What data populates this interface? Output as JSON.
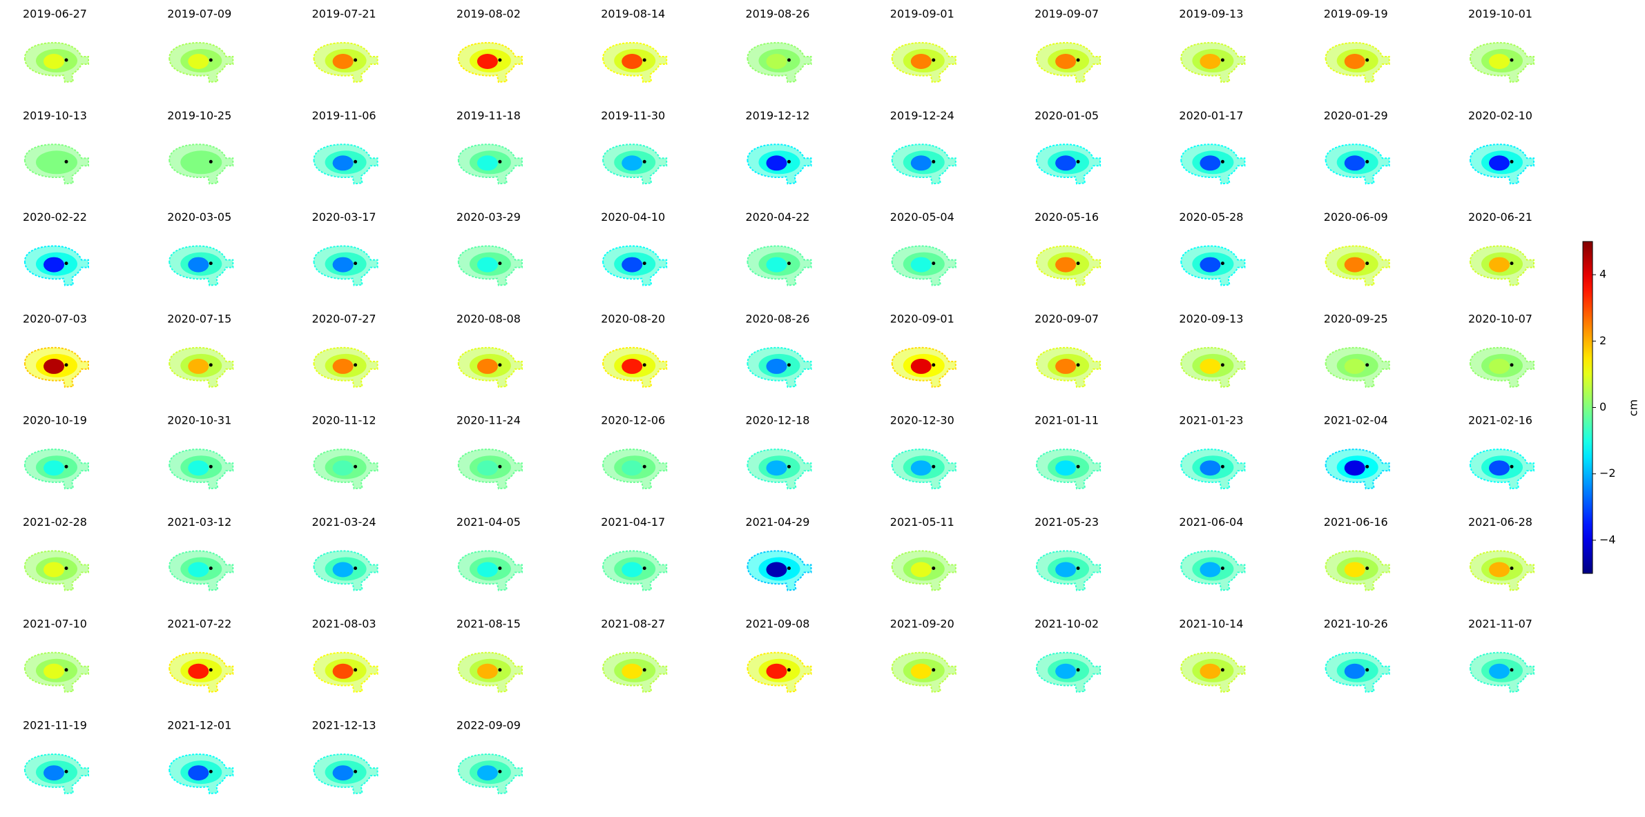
{
  "chart_data": {
    "type": "image_grid",
    "panels": [
      {
        "date": "2019-06-27",
        "value": 1
      },
      {
        "date": "2019-07-09",
        "value": 1
      },
      {
        "date": "2019-07-21",
        "value": 2.5
      },
      {
        "date": "2019-08-02",
        "value": 3.5
      },
      {
        "date": "2019-08-14",
        "value": 3
      },
      {
        "date": "2019-08-26",
        "value": 0.5
      },
      {
        "date": "2019-09-01",
        "value": 2.5
      },
      {
        "date": "2019-09-07",
        "value": 2.5
      },
      {
        "date": "2019-09-13",
        "value": 2
      },
      {
        "date": "2019-09-19",
        "value": 2.5
      },
      {
        "date": "2019-10-01",
        "value": 1
      },
      {
        "date": "2019-10-13",
        "value": 0
      },
      {
        "date": "2019-10-25",
        "value": 0
      },
      {
        "date": "2019-11-06",
        "value": -2.5
      },
      {
        "date": "2019-11-18",
        "value": -1
      },
      {
        "date": "2019-11-30",
        "value": -2
      },
      {
        "date": "2019-12-12",
        "value": -3.5
      },
      {
        "date": "2019-12-24",
        "value": -2.5
      },
      {
        "date": "2020-01-05",
        "value": -3
      },
      {
        "date": "2020-01-17",
        "value": -3
      },
      {
        "date": "2020-01-29",
        "value": -3
      },
      {
        "date": "2020-02-10",
        "value": -3.5
      },
      {
        "date": "2020-02-22",
        "value": -3.5
      },
      {
        "date": "2020-03-05",
        "value": -2.5
      },
      {
        "date": "2020-03-17",
        "value": -2.5
      },
      {
        "date": "2020-03-29",
        "value": -1
      },
      {
        "date": "2020-04-10",
        "value": -3
      },
      {
        "date": "2020-04-22",
        "value": -1
      },
      {
        "date": "2020-05-04",
        "value": -1
      },
      {
        "date": "2020-05-16",
        "value": 2.5
      },
      {
        "date": "2020-05-28",
        "value": -3
      },
      {
        "date": "2020-06-09",
        "value": 2.5
      },
      {
        "date": "2020-06-21",
        "value": 2
      },
      {
        "date": "2020-07-03",
        "value": 4.5
      },
      {
        "date": "2020-07-15",
        "value": 2
      },
      {
        "date": "2020-07-27",
        "value": 2.5
      },
      {
        "date": "2020-08-08",
        "value": 2.5
      },
      {
        "date": "2020-08-20",
        "value": 3.5
      },
      {
        "date": "2020-08-26",
        "value": -2.5
      },
      {
        "date": "2020-09-01",
        "value": 4
      },
      {
        "date": "2020-09-07",
        "value": 2.5
      },
      {
        "date": "2020-09-13",
        "value": 1.5
      },
      {
        "date": "2020-09-25",
        "value": 0.5
      },
      {
        "date": "2020-10-07",
        "value": 0.5
      },
      {
        "date": "2020-10-19",
        "value": -1
      },
      {
        "date": "2020-10-31",
        "value": -1
      },
      {
        "date": "2020-11-12",
        "value": -0.5
      },
      {
        "date": "2020-11-24",
        "value": -0.5
      },
      {
        "date": "2020-12-06",
        "value": -0.5
      },
      {
        "date": "2020-12-18",
        "value": -2
      },
      {
        "date": "2020-12-30",
        "value": -2
      },
      {
        "date": "2021-01-11",
        "value": -1.5
      },
      {
        "date": "2021-01-23",
        "value": -2.5
      },
      {
        "date": "2021-02-04",
        "value": -4
      },
      {
        "date": "2021-02-16",
        "value": -3
      },
      {
        "date": "2021-02-28",
        "value": 1
      },
      {
        "date": "2021-03-12",
        "value": -1
      },
      {
        "date": "2021-03-24",
        "value": -2
      },
      {
        "date": "2021-04-05",
        "value": -1
      },
      {
        "date": "2021-04-17",
        "value": -1
      },
      {
        "date": "2021-04-29",
        "value": -4.5
      },
      {
        "date": "2021-05-11",
        "value": 1
      },
      {
        "date": "2021-05-23",
        "value": -2
      },
      {
        "date": "2021-06-04",
        "value": -2
      },
      {
        "date": "2021-06-16",
        "value": 1.5
      },
      {
        "date": "2021-06-28",
        "value": 2
      },
      {
        "date": "2021-07-10",
        "value": 1
      },
      {
        "date": "2021-07-22",
        "value": 3.5
      },
      {
        "date": "2021-08-03",
        "value": 3
      },
      {
        "date": "2021-08-15",
        "value": 2
      },
      {
        "date": "2021-08-27",
        "value": 1.5
      },
      {
        "date": "2021-09-08",
        "value": 3.5
      },
      {
        "date": "2021-09-20",
        "value": 1.5
      },
      {
        "date": "2021-10-02",
        "value": -2
      },
      {
        "date": "2021-10-14",
        "value": 2
      },
      {
        "date": "2021-10-26",
        "value": -2.5
      },
      {
        "date": "2021-11-07",
        "value": -2
      },
      {
        "date": "2021-11-19",
        "value": -2.5
      },
      {
        "date": "2021-12-01",
        "value": -3
      },
      {
        "date": "2021-12-13",
        "value": -2.5
      },
      {
        "date": "2022-09-09",
        "value": -2
      }
    ],
    "colorbar": {
      "label": "cm",
      "ylim": [
        -5,
        5
      ],
      "yticks": [
        {
          "value": -4,
          "label": "−4"
        },
        {
          "value": -2,
          "label": "−2"
        },
        0,
        2,
        4
      ]
    }
  }
}
